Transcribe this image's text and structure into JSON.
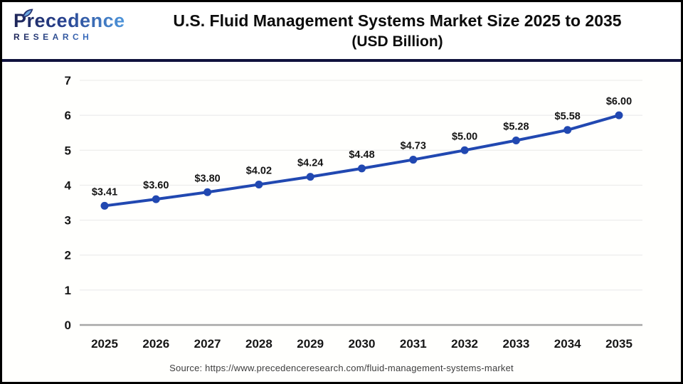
{
  "brand": {
    "name": "Precedence",
    "subname": "RESEARCH"
  },
  "header": {
    "title_line1": "U.S. Fluid Management Systems Market Size 2025 to 2035",
    "title_line2": "(USD Billion)"
  },
  "footer": {
    "source": "Source: https://www.precedenceresearch.com/fluid-management-systems-market"
  },
  "chart_data": {
    "type": "line",
    "title": "U.S. Fluid Management Systems Market Size 2025 to 2035 (USD Billion)",
    "categories": [
      "2025",
      "2026",
      "2027",
      "2028",
      "2029",
      "2030",
      "2031",
      "2032",
      "2033",
      "2034",
      "2035"
    ],
    "values": [
      3.41,
      3.6,
      3.8,
      4.02,
      4.24,
      4.48,
      4.73,
      5.0,
      5.28,
      5.58,
      6.0
    ],
    "point_labels": [
      "$3.41",
      "$3.60",
      "$3.80",
      "$4.02",
      "$4.24",
      "$4.48",
      "$4.73",
      "$5.00",
      "$5.28",
      "$5.58",
      "$6.00"
    ],
    "xlabel": "",
    "ylabel": "",
    "ylim": [
      0,
      7
    ],
    "yticks": [
      0,
      1,
      2,
      3,
      4,
      5,
      6,
      7
    ],
    "grid": true,
    "legend_position": "none",
    "colors": {
      "line": "#2148b1",
      "point": "#2148b1",
      "grid": "#e8e8e8",
      "baseline": "#a6a6a6",
      "divider": "#10123d"
    }
  }
}
